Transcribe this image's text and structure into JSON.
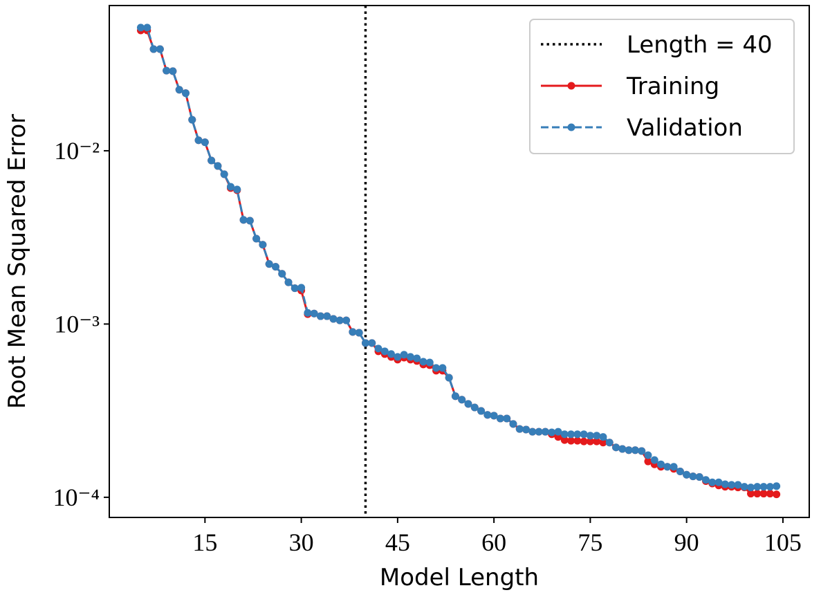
{
  "chart_data": {
    "type": "line",
    "xlabel": "Model Length",
    "ylabel": "Root Mean Squared Error",
    "xlim": [
      0.1,
      109.1
    ],
    "xticks": [
      15,
      30,
      45,
      60,
      75,
      90,
      105
    ],
    "ylim": [
      7.65e-05,
      0.0689
    ],
    "yscale": "log",
    "yticks": [
      {
        "value": 0.0001,
        "label": "10⁻⁴"
      },
      {
        "value": 0.001,
        "label": "10⁻³"
      },
      {
        "value": 0.01,
        "label": "10⁻²"
      }
    ],
    "legend": "upper right",
    "vline": {
      "name": "Length = 40",
      "x": 40,
      "color": "#000000"
    },
    "x": [
      5,
      6,
      7,
      8,
      9,
      10,
      11,
      12,
      13,
      14,
      15,
      16,
      17,
      18,
      19,
      20,
      21,
      22,
      23,
      24,
      25,
      26,
      27,
      28,
      29,
      30,
      31,
      32,
      33,
      34,
      35,
      36,
      37,
      38,
      39,
      40,
      41,
      42,
      43,
      44,
      45,
      46,
      47,
      48,
      49,
      50,
      51,
      52,
      53,
      54,
      55,
      56,
      57,
      58,
      59,
      60,
      61,
      62,
      63,
      64,
      65,
      66,
      67,
      68,
      69,
      70,
      71,
      72,
      73,
      74,
      75,
      76,
      77,
      78,
      79,
      80,
      81,
      82,
      83,
      84,
      85,
      86,
      87,
      88,
      89,
      90,
      91,
      92,
      93,
      94,
      95,
      96,
      97,
      98,
      99,
      100,
      101,
      102,
      103,
      104
    ],
    "series": [
      {
        "name": "Training",
        "color": "#e41a1c",
        "dash": false,
        "values": [
          0.0495,
          0.0495,
          0.0386,
          0.0386,
          0.029,
          0.0288,
          0.0225,
          0.0215,
          0.0151,
          0.0115,
          0.0112,
          0.00879,
          0.00817,
          0.00732,
          0.00609,
          0.00592,
          0.00399,
          0.00395,
          0.00311,
          0.00287,
          0.00222,
          0.00214,
          0.00195,
          0.00174,
          0.00161,
          0.00156,
          0.00114,
          0.00115,
          0.00111,
          0.00111,
          0.00107,
          0.00105,
          0.00105,
          0.0009,
          0.000891,
          0.000777,
          0.000777,
          0.000696,
          0.000671,
          0.000646,
          0.000623,
          0.00064,
          0.000623,
          0.000612,
          0.000584,
          0.000579,
          0.000538,
          0.000538,
          0.00049,
          0.000383,
          0.000366,
          0.000346,
          0.00033,
          0.000315,
          0.000299,
          0.000296,
          0.000285,
          0.000285,
          0.000265,
          0.000248,
          0.000246,
          0.000239,
          0.000239,
          0.000239,
          0.000231,
          0.000223,
          0.000214,
          0.000212,
          0.000212,
          0.00021,
          0.00021,
          0.00021,
          0.000207,
          0.000207,
          0.000194,
          0.00019,
          0.000187,
          0.000187,
          0.000185,
          0.000161,
          0.000155,
          0.00015,
          0.00015,
          0.000146,
          0.000141,
          0.000135,
          0.000132,
          0.000131,
          0.000124,
          0.00012,
          0.000117,
          0.000115,
          0.000115,
          0.000114,
          0.000114,
          0.000105,
          0.000105,
          0.000105,
          0.000105,
          0.000104
        ]
      },
      {
        "name": "Validation",
        "color": "#377eb8",
        "dash": true,
        "values": [
          0.0514,
          0.0514,
          0.0386,
          0.0386,
          0.029,
          0.0288,
          0.0225,
          0.0215,
          0.0151,
          0.0115,
          0.0112,
          0.00879,
          0.00817,
          0.00732,
          0.0062,
          0.00598,
          0.00399,
          0.00395,
          0.00311,
          0.00287,
          0.00222,
          0.00214,
          0.00195,
          0.00174,
          0.00161,
          0.00162,
          0.00116,
          0.00115,
          0.00111,
          0.00111,
          0.00107,
          0.00105,
          0.00105,
          0.0009,
          0.000891,
          0.000777,
          0.000777,
          0.000722,
          0.000696,
          0.000671,
          0.000646,
          0.000665,
          0.000646,
          0.000634,
          0.000606,
          0.0006,
          0.000558,
          0.000558,
          0.00049,
          0.000383,
          0.000366,
          0.000346,
          0.00033,
          0.000315,
          0.000299,
          0.000296,
          0.000285,
          0.000285,
          0.000265,
          0.000248,
          0.000246,
          0.000239,
          0.000239,
          0.000239,
          0.000237,
          0.000239,
          0.000231,
          0.000231,
          0.000231,
          0.000231,
          0.000227,
          0.000227,
          0.000223,
          0.000207,
          0.000194,
          0.00019,
          0.000187,
          0.000187,
          0.000185,
          0.000175,
          0.000164,
          0.000155,
          0.00015,
          0.00015,
          0.000141,
          0.000135,
          0.000132,
          0.000131,
          0.000126,
          0.000122,
          0.000122,
          0.000119,
          0.000118,
          0.000118,
          0.000115,
          0.000114,
          0.000115,
          0.000115,
          0.000115,
          0.000116
        ]
      }
    ]
  }
}
